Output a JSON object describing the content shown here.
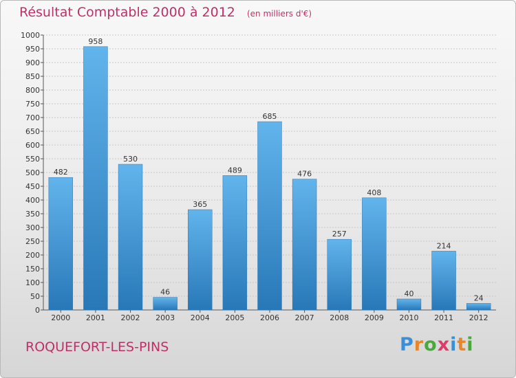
{
  "header": {
    "title": "Résultat Comptable 2000 à 2012",
    "unit": "(en milliers d'€)"
  },
  "footer": {
    "commune": "ROQUEFORT-LES-PINS",
    "logo_text": "Proxiti"
  },
  "colors": {
    "accent": "#c03068",
    "bar_top": "#62b4ec",
    "bar_bottom": "#2878b8"
  },
  "chart_data": {
    "type": "bar",
    "title": "Résultat Comptable 2000 à 2012",
    "subtitle": "(en milliers d'€)",
    "xlabel": "",
    "ylabel": "",
    "categories": [
      "2000",
      "2001",
      "2002",
      "2003",
      "2004",
      "2005",
      "2006",
      "2007",
      "2008",
      "2009",
      "2010",
      "2011",
      "2012"
    ],
    "values": [
      482,
      958,
      530,
      46,
      365,
      489,
      685,
      476,
      257,
      408,
      40,
      214,
      24
    ],
    "ylim": [
      0,
      1000
    ],
    "yticks": [
      0,
      50,
      100,
      150,
      200,
      250,
      300,
      350,
      400,
      450,
      500,
      550,
      600,
      650,
      700,
      750,
      800,
      850,
      900,
      950,
      1000
    ],
    "grid": true,
    "legend": "none"
  }
}
